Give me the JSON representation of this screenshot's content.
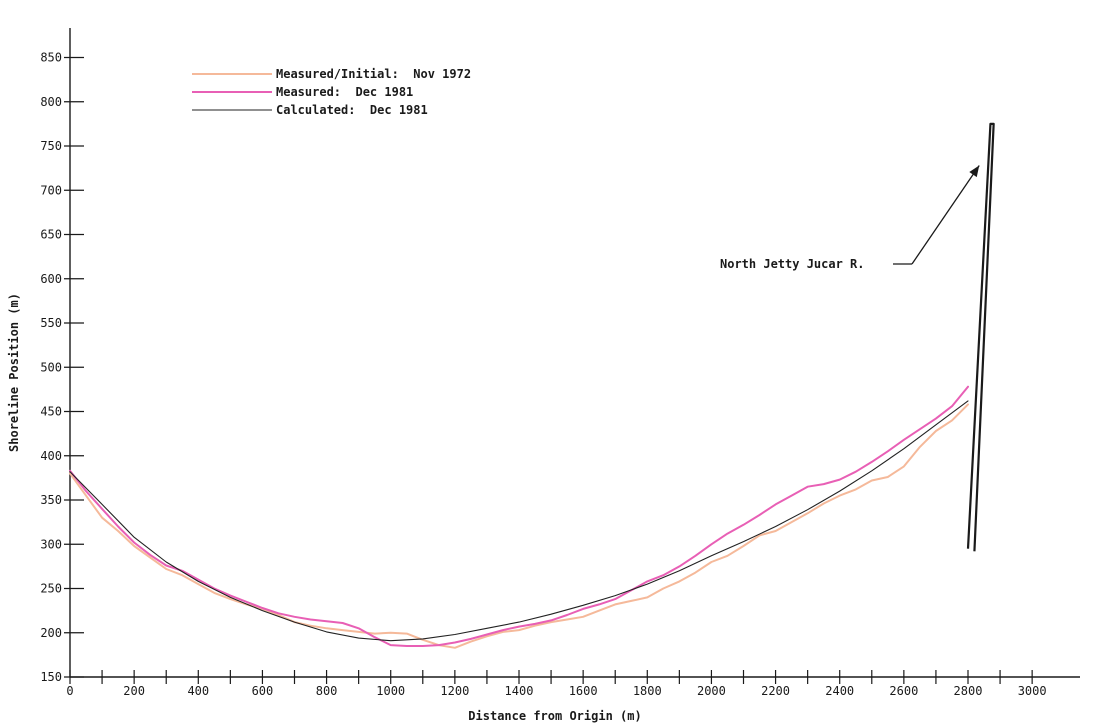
{
  "chart_data": {
    "type": "line",
    "title": "",
    "xlabel": "Distance from Origin (m)",
    "ylabel": "Shoreline Position (m)",
    "xlim": [
      0,
      3100
    ],
    "ylim": [
      150,
      870
    ],
    "x_ticks": [
      0,
      200,
      400,
      600,
      800,
      1000,
      1200,
      1400,
      1600,
      1800,
      2000,
      2200,
      2400,
      2600,
      2800,
      3000
    ],
    "y_ticks": [
      150,
      200,
      250,
      300,
      350,
      400,
      450,
      500,
      550,
      600,
      650,
      700,
      750,
      800,
      850
    ],
    "grid": false,
    "legend_position": "top-left",
    "series": [
      {
        "name": "Measured/Initial:  Nov 1972",
        "color": "#f5b99a",
        "x": [
          0,
          50,
          100,
          150,
          200,
          250,
          300,
          350,
          400,
          450,
          500,
          550,
          600,
          650,
          700,
          750,
          800,
          850,
          900,
          950,
          1000,
          1050,
          1100,
          1150,
          1200,
          1250,
          1300,
          1350,
          1400,
          1450,
          1500,
          1550,
          1600,
          1650,
          1700,
          1750,
          1800,
          1850,
          1900,
          1950,
          2000,
          2050,
          2100,
          2150,
          2200,
          2250,
          2300,
          2350,
          2400,
          2450,
          2500,
          2550,
          2600,
          2650,
          2700,
          2750,
          2800
        ],
        "y": [
          380,
          355,
          330,
          315,
          298,
          285,
          272,
          265,
          255,
          245,
          238,
          232,
          227,
          220,
          212,
          208,
          205,
          203,
          201,
          199,
          200,
          199,
          192,
          186,
          183,
          190,
          196,
          201,
          203,
          208,
          212,
          215,
          218,
          225,
          232,
          236,
          240,
          250,
          258,
          268,
          280,
          287,
          298,
          310,
          315,
          325,
          335,
          346,
          355,
          362,
          372,
          376,
          388,
          410,
          428,
          440,
          458
        ]
      },
      {
        "name": "Measured:  Dec 1981",
        "color": "#e85fb5",
        "x": [
          0,
          50,
          100,
          150,
          200,
          250,
          300,
          350,
          400,
          450,
          500,
          550,
          600,
          650,
          700,
          750,
          800,
          850,
          900,
          950,
          1000,
          1050,
          1100,
          1150,
          1200,
          1250,
          1300,
          1350,
          1400,
          1450,
          1500,
          1550,
          1600,
          1650,
          1700,
          1750,
          1800,
          1850,
          1900,
          1950,
          2000,
          2050,
          2100,
          2150,
          2200,
          2250,
          2300,
          2350,
          2400,
          2450,
          2500,
          2550,
          2600,
          2650,
          2700,
          2750,
          2800
        ],
        "y": [
          383,
          360,
          340,
          320,
          302,
          288,
          276,
          270,
          260,
          250,
          242,
          235,
          228,
          222,
          218,
          215,
          213,
          211,
          205,
          195,
          186,
          185,
          185,
          186,
          189,
          193,
          198,
          203,
          207,
          210,
          214,
          220,
          227,
          232,
          238,
          248,
          258,
          265,
          275,
          287,
          300,
          312,
          322,
          333,
          345,
          355,
          365,
          368,
          373,
          382,
          393,
          405,
          418,
          430,
          442,
          456,
          478
        ]
      },
      {
        "name": "Calculated:  Dec 1981",
        "color": "#222222",
        "x": [
          0,
          100,
          200,
          300,
          400,
          500,
          600,
          700,
          800,
          900,
          1000,
          1100,
          1200,
          1300,
          1400,
          1500,
          1600,
          1700,
          1800,
          1900,
          2000,
          2100,
          2200,
          2300,
          2400,
          2500,
          2600,
          2700,
          2800
        ],
        "y": [
          382,
          345,
          308,
          280,
          258,
          240,
          225,
          212,
          201,
          194,
          191,
          193,
          198,
          205,
          212,
          221,
          231,
          242,
          255,
          270,
          287,
          303,
          320,
          339,
          360,
          383,
          408,
          435,
          462
        ]
      }
    ],
    "annotations": [
      {
        "text": "North Jetty Jucar R.",
        "target_x": 2835,
        "target_y": 728
      }
    ],
    "structure": {
      "name": "north-jetty",
      "outline": [
        [
          2800,
          295
        ],
        [
          2870,
          775
        ],
        [
          2880,
          775
        ],
        [
          2820,
          292
        ]
      ]
    }
  }
}
